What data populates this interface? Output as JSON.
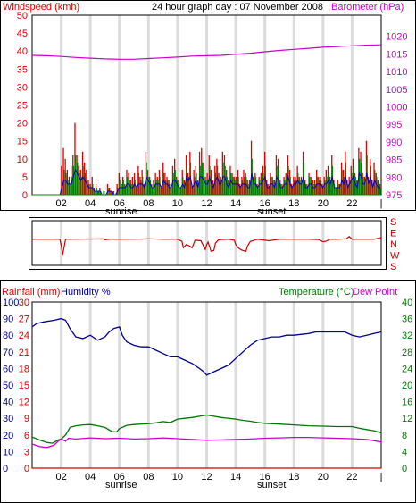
{
  "chart_data": [
    {
      "type": "bar",
      "title": "24 hour graph day : 07 November 2008",
      "ylabel": "Windspeed (kmh)",
      "y2label": "Barometer (hPa)",
      "x_ticks": [
        "02",
        "04",
        "06",
        "08",
        "10",
        "12",
        "14",
        "16",
        "18",
        "20",
        "22",
        "|"
      ],
      "annotations": {
        "sunrise": "sunrise",
        "sunset": "sunset"
      },
      "ylim": [
        0,
        50
      ],
      "y_ticks": [
        "0",
        "5",
        "10",
        "15",
        "20",
        "25",
        "30",
        "35",
        "40",
        "45",
        "50"
      ],
      "y2lim": [
        975,
        1020
      ],
      "y2_ticks": [
        "975",
        "980",
        "985",
        "990",
        "995",
        "1000",
        "1005",
        "1010",
        "1015",
        "1020"
      ],
      "grid": true,
      "x_range_hours": [
        0,
        24
      ],
      "series": [
        {
          "role": "gust",
          "color": "#e00000",
          "values": [
            0,
            0,
            0,
            0,
            0,
            0,
            0,
            0,
            0,
            0,
            0,
            0,
            0,
            0,
            0,
            8,
            13,
            10,
            7,
            5,
            8,
            11,
            20,
            11,
            8,
            7,
            12,
            9,
            7,
            4,
            3,
            5,
            2,
            3,
            1,
            2,
            0,
            1,
            0,
            3,
            2,
            1,
            1,
            0,
            3,
            6,
            5,
            5,
            3,
            7,
            6,
            4,
            5,
            6,
            2,
            8,
            5,
            7,
            3,
            12,
            7,
            5,
            3,
            4,
            6,
            5,
            7,
            2,
            9,
            6,
            5,
            4,
            2,
            8,
            10,
            5,
            4,
            2,
            7,
            4,
            11,
            6,
            12,
            3,
            7,
            8,
            4,
            12,
            13,
            9,
            5,
            6,
            11,
            7,
            4,
            8,
            10,
            6,
            5,
            12,
            11,
            7,
            4,
            8,
            6,
            5,
            5,
            7,
            3,
            5,
            7,
            6,
            4,
            4,
            15,
            5,
            6,
            3,
            5,
            6,
            8,
            12,
            4,
            3,
            6,
            5,
            4,
            11,
            10,
            4,
            3,
            5,
            6,
            11,
            7,
            3,
            5,
            5,
            8,
            5,
            5,
            12,
            4,
            3,
            6,
            5,
            4,
            4,
            7,
            5,
            5,
            3,
            5,
            7,
            8,
            5,
            11,
            4,
            2,
            4,
            3,
            9,
            7,
            12,
            4,
            5,
            8,
            10,
            6,
            4,
            13,
            12,
            6,
            5,
            15,
            5,
            10,
            4,
            9,
            6,
            4,
            3
          ]
        },
        {
          "role": "average",
          "color": "#008000",
          "values": [
            0,
            0,
            0,
            0,
            0,
            0,
            0,
            0,
            0,
            0,
            0,
            0,
            0,
            0,
            0,
            4,
            7,
            6,
            4,
            3,
            5,
            8,
            11,
            9,
            6,
            5,
            8,
            6,
            5,
            3,
            2,
            3,
            1,
            2,
            1,
            1,
            0,
            1,
            0,
            2,
            1,
            1,
            1,
            0,
            2,
            4,
            3,
            4,
            2,
            5,
            4,
            3,
            3,
            4,
            2,
            6,
            4,
            5,
            2,
            9,
            5,
            4,
            2,
            3,
            4,
            4,
            5,
            2,
            6,
            4,
            4,
            3,
            2,
            6,
            7,
            4,
            3,
            2,
            5,
            3,
            8,
            5,
            9,
            2,
            5,
            6,
            3,
            8,
            9,
            7,
            4,
            4,
            8,
            5,
            3,
            6,
            8,
            4,
            4,
            9,
            8,
            5,
            3,
            6,
            5,
            4,
            4,
            5,
            2,
            4,
            5,
            5,
            3,
            3,
            10,
            4,
            5,
            2,
            4,
            5,
            6,
            8,
            3,
            2,
            5,
            4,
            3,
            8,
            7,
            3,
            2,
            4,
            5,
            8,
            5,
            2,
            4,
            4,
            6,
            4,
            4,
            9,
            3,
            2,
            5,
            4,
            3,
            3,
            5,
            4,
            4,
            2,
            4,
            5,
            6,
            4,
            8,
            3,
            2,
            3,
            2,
            7,
            5,
            9,
            3,
            4,
            6,
            8,
            5,
            3,
            10,
            9,
            5,
            4,
            11,
            4,
            8,
            3,
            7,
            5,
            3,
            2
          ]
        },
        {
          "role": "direction-average",
          "color": "#0000cc",
          "values": [
            0,
            0,
            0,
            0,
            0,
            0,
            0,
            0,
            0,
            0,
            0,
            0,
            0,
            0,
            0,
            2,
            4,
            4,
            3,
            3,
            3,
            5,
            7,
            6,
            5,
            4,
            5,
            4,
            3,
            2,
            2,
            2,
            1,
            1,
            1,
            1,
            0,
            0,
            0,
            1,
            1,
            1,
            0,
            0,
            1,
            2,
            2,
            2,
            2,
            3,
            3,
            2,
            2,
            3,
            2,
            3,
            3,
            3,
            2,
            5,
            4,
            3,
            2,
            2,
            3,
            3,
            3,
            2,
            4,
            3,
            3,
            2,
            2,
            4,
            4,
            3,
            2,
            2,
            3,
            2,
            5,
            4,
            5,
            2,
            3,
            4,
            2,
            5,
            5,
            4,
            3,
            3,
            5,
            3,
            2,
            4,
            5,
            3,
            3,
            5,
            5,
            3,
            2,
            4,
            3,
            3,
            3,
            3,
            2,
            3,
            3,
            3,
            2,
            2,
            6,
            3,
            3,
            2,
            3,
            3,
            4,
            5,
            2,
            2,
            3,
            3,
            2,
            5,
            4,
            2,
            2,
            3,
            3,
            5,
            3,
            2,
            3,
            3,
            4,
            3,
            3,
            5,
            2,
            2,
            3,
            3,
            2,
            2,
            3,
            3,
            3,
            2,
            3,
            3,
            4,
            3,
            5,
            2,
            2,
            2,
            2,
            4,
            3,
            5,
            2,
            3,
            4,
            5,
            3,
            2,
            6,
            5,
            3,
            3,
            6,
            3,
            5,
            2,
            4,
            3,
            2,
            2
          ]
        },
        {
          "role": "barometer",
          "color": "#cc00cc",
          "axis": "y2",
          "x": [
            0,
            1,
            2,
            3,
            4,
            5,
            6,
            7,
            8,
            9,
            10,
            11,
            12,
            13,
            14,
            15,
            16,
            17,
            18,
            19,
            20,
            21,
            22,
            23,
            24
          ],
          "values": [
            1014.6,
            1014.5,
            1014.3,
            1014.0,
            1013.8,
            1013.6,
            1013.5,
            1013.5,
            1013.7,
            1013.9,
            1014.1,
            1014.4,
            1014.5,
            1014.6,
            1014.9,
            1015.2,
            1015.6,
            1016.0,
            1016.3,
            1016.6,
            1016.9,
            1017.1,
            1017.3,
            1017.5,
            1017.6
          ]
        }
      ]
    },
    {
      "type": "line",
      "title": "",
      "y_ticks_right": [
        "S",
        "E",
        "N",
        "W",
        "S"
      ],
      "x_range_hours": [
        0,
        24
      ],
      "ylim": [
        0,
        360
      ],
      "grid": true,
      "series": [
        {
          "role": "wind-direction",
          "color": "#cc0000",
          "x": [
            0,
            1.2,
            1.9,
            2.0,
            2.1,
            2.3,
            3.5,
            4.9,
            5.0,
            5.3,
            6.0,
            7.5,
            8.0,
            9.0,
            10.0,
            10.3,
            10.4,
            10.6,
            10.8,
            11.0,
            11.2,
            11.6,
            11.9,
            12.0,
            12.1,
            12.3,
            12.5,
            12.6,
            12.8,
            13.0,
            13.5,
            13.9,
            14.0,
            14.2,
            14.4,
            14.7,
            14.8,
            15.0,
            15.5,
            16.0,
            16.3,
            16.6,
            17.0,
            17.5,
            18.0,
            19.0,
            19.7,
            20.0,
            20.2,
            20.5,
            21.0,
            21.6,
            21.8,
            22.0,
            22.5,
            23.0,
            23.5,
            24.0
          ],
          "values": [
            150,
            150,
            148,
            200,
            275,
            150,
            148,
            147,
            154,
            150,
            150,
            148,
            146,
            150,
            150,
            166,
            218,
            192,
            202,
            218,
            158,
            162,
            232,
            195,
            172,
            246,
            240,
            182,
            156,
            152,
            150,
            158,
            193,
            222,
            236,
            248,
            206,
            168,
            150,
            158,
            162,
            156,
            150,
            150,
            150,
            150,
            152,
            170,
            166,
            148,
            150,
            146,
            128,
            150,
            150,
            150,
            150,
            136
          ]
        }
      ]
    },
    {
      "type": "line",
      "title": "",
      "ylabel_left_a": "Rainfall (mm)",
      "ylabel_left_b": "Humidity %",
      "ylabel_right_a": "Temperature (°C)",
      "ylabel_right_b": "Dew Point",
      "x_ticks": [
        "02",
        "04",
        "06",
        "08",
        "10",
        "12",
        "14",
        "16",
        "18",
        "20",
        "22",
        "|"
      ],
      "annotations": {
        "sunrise": "sunrise",
        "sunset": "sunset"
      },
      "rain_ticks": [
        "0",
        "3",
        "6",
        "9",
        "12",
        "15",
        "18",
        "21",
        "24",
        "27",
        "30"
      ],
      "humidity_ticks": [
        "0",
        "10",
        "20",
        "30",
        "40",
        "50",
        "60",
        "70",
        "80",
        "90",
        "100"
      ],
      "temp_ticks": [
        "0",
        "4",
        "8",
        "12",
        "16",
        "20",
        "24",
        "28",
        "32",
        "36",
        "40"
      ],
      "x_range_hours": [
        0,
        24
      ],
      "grid": true,
      "series": [
        {
          "role": "humidity",
          "color": "#00008b",
          "axis": "humidity",
          "x": [
            0,
            0.3,
            0.8,
            1.5,
            2.0,
            2.3,
            2.6,
            3.0,
            3.5,
            4.0,
            4.5,
            5.0,
            5.3,
            5.6,
            6.0,
            6.2,
            6.5,
            7.0,
            7.5,
            8.0,
            8.5,
            9.0,
            9.5,
            10.0,
            10.5,
            11.0,
            11.5,
            11.8,
            12.0,
            12.5,
            13.0,
            13.5,
            14.0,
            14.5,
            15.0,
            15.5,
            16.0,
            16.5,
            17.0,
            17.5,
            18.0,
            19.0,
            19.5,
            20.0,
            21.0,
            21.5,
            22.0,
            22.5,
            23.0,
            23.5,
            24.0
          ],
          "values": [
            85,
            87,
            88,
            89,
            90,
            89,
            84,
            79,
            78,
            80,
            77,
            79,
            82,
            84,
            85,
            80,
            76,
            74,
            73,
            73,
            71,
            69,
            67,
            67,
            65,
            63,
            60,
            58,
            56,
            58,
            60,
            62,
            66,
            70,
            74,
            77,
            78,
            79,
            79,
            80,
            80,
            81,
            82,
            82,
            82,
            82,
            80,
            79,
            80,
            81,
            82
          ]
        },
        {
          "role": "temperature",
          "color": "#007700",
          "axis": "temp",
          "x": [
            0,
            0.5,
            1.0,
            1.4,
            1.8,
            2.0,
            2.3,
            2.6,
            3.0,
            3.5,
            4.0,
            4.5,
            5.0,
            5.3,
            5.5,
            5.8,
            6.0,
            6.5,
            7.0,
            7.5,
            8.0,
            8.5,
            9.0,
            9.5,
            10.0,
            10.5,
            11.0,
            11.5,
            12.0,
            12.5,
            13.0,
            13.5,
            14.0,
            14.5,
            15.0,
            15.5,
            16.0,
            17.0,
            18.0,
            19.0,
            20.0,
            21.0,
            22.0,
            22.5,
            23.0,
            23.5,
            24.0
          ],
          "values": [
            7.5,
            6.8,
            6.2,
            6.0,
            6.8,
            7.0,
            8.0,
            9.8,
            10.2,
            10.4,
            10.5,
            10.2,
            9.8,
            9.2,
            8.8,
            8.7,
            9.5,
            10.3,
            10.5,
            10.6,
            10.7,
            10.9,
            11.2,
            11.0,
            11.8,
            12.0,
            12.2,
            12.5,
            12.8,
            12.5,
            12.2,
            12.0,
            11.8,
            11.5,
            11.3,
            11.0,
            10.8,
            10.6,
            10.4,
            10.2,
            10.1,
            10.0,
            10.0,
            9.6,
            9.3,
            9.0,
            8.5
          ]
        },
        {
          "role": "dew-point",
          "color": "#cc00cc",
          "axis": "temp",
          "x": [
            0,
            0.5,
            1.0,
            1.5,
            1.8,
            2.0,
            2.3,
            2.5,
            3.0,
            4.0,
            5.0,
            6.0,
            7.0,
            8.0,
            9.0,
            10.0,
            11.0,
            12.0,
            13.0,
            14.0,
            15.0,
            16.0,
            17.0,
            18.0,
            19.0,
            20.0,
            21.0,
            22.0,
            23.0,
            24.0
          ],
          "values": [
            5.8,
            5.2,
            5.0,
            5.5,
            6.5,
            7.0,
            6.5,
            7.2,
            7.0,
            7.3,
            7.1,
            7.2,
            7.0,
            7.1,
            7.3,
            7.1,
            6.9,
            6.7,
            6.8,
            6.9,
            7.0,
            7.2,
            7.3,
            7.4,
            7.4,
            7.3,
            7.2,
            7.1,
            6.9,
            6.3
          ]
        },
        {
          "role": "rainfall",
          "color": "#cc0000",
          "axis": "rain",
          "x": [
            0,
            24
          ],
          "values": [
            0,
            0
          ]
        }
      ]
    }
  ]
}
